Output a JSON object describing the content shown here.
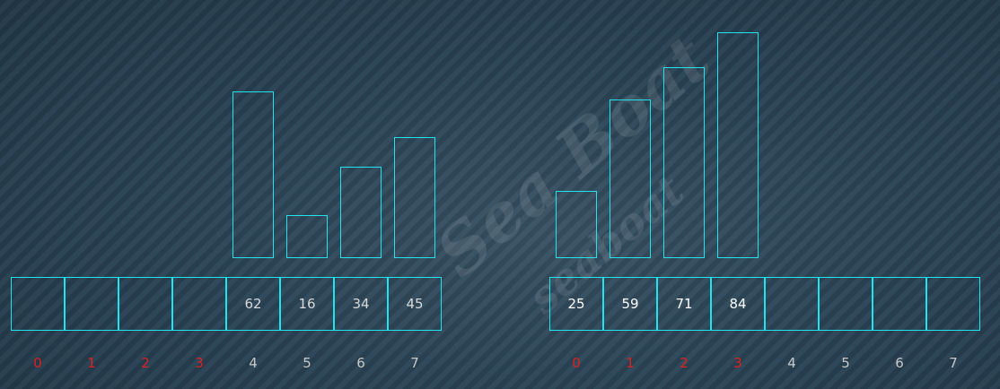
{
  "watermark": {
    "line1": "Sea Boat",
    "line2": "seaboat"
  },
  "colors": {
    "outline": "#22e3ee",
    "index_highlight": "#e02020",
    "index_normal": "#c8c8c8"
  },
  "left_array": {
    "cells": [
      "",
      "",
      "",
      "",
      "62",
      "16",
      "34",
      "45"
    ],
    "bars": [
      null,
      null,
      null,
      null,
      62,
      16,
      34,
      45
    ],
    "indices": [
      "0",
      "1",
      "2",
      "3",
      "4",
      "5",
      "6",
      "7"
    ],
    "highlight_indices": [
      0,
      1,
      2,
      3
    ]
  },
  "right_array": {
    "cells": [
      "25",
      "59",
      "71",
      "84",
      "",
      "",
      "",
      ""
    ],
    "bars": [
      25,
      59,
      71,
      84,
      null,
      null,
      null,
      null
    ],
    "indices": [
      "0",
      "1",
      "2",
      "3",
      "4",
      "5",
      "6",
      "7"
    ],
    "highlight_indices": [
      0,
      1,
      2,
      3
    ]
  }
}
